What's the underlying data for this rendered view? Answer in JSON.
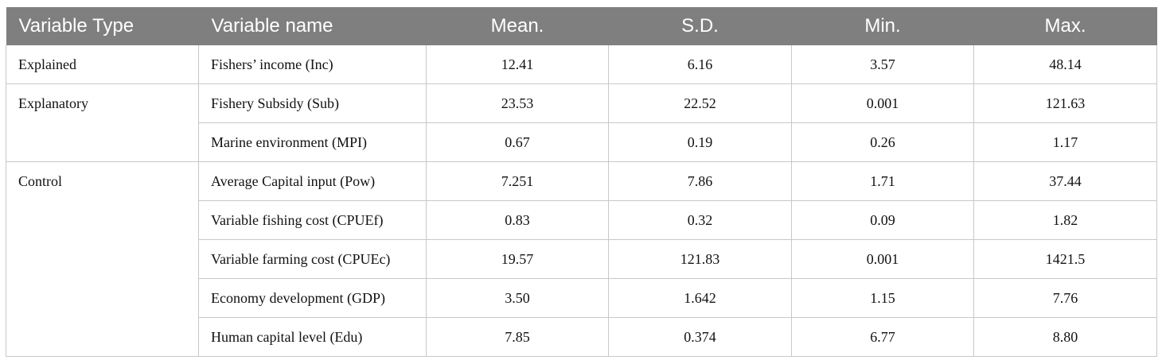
{
  "table": {
    "headers": [
      "Variable Type",
      "Variable name",
      "Mean.",
      "S.D.",
      "Min.",
      "Max."
    ],
    "rows": [
      {
        "type": "Explained",
        "name": "Fishers’ income (Inc)",
        "mean": "12.41",
        "sd": "6.16",
        "min": "3.57",
        "max": "48.14"
      },
      {
        "type": "Explanatory",
        "name": "Fishery Subsidy (Sub)",
        "mean": "23.53",
        "sd": "22.52",
        "min": "0.001",
        "max": "121.63"
      },
      {
        "type": "",
        "name": "Marine environment (MPI)",
        "mean": "0.67",
        "sd": "0.19",
        "min": "0.26",
        "max": "1.17"
      },
      {
        "type": "Control",
        "name": "Average Capital input (Pow)",
        "mean": "7.251",
        "sd": "7.86",
        "min": "1.71",
        "max": "37.44"
      },
      {
        "type": "",
        "name": "Variable fishing cost (CPUEf)",
        "mean": "0.83",
        "sd": "0.32",
        "min": "0.09",
        "max": "1.82"
      },
      {
        "type": "",
        "name": "Variable farming cost (CPUEc)",
        "mean": "19.57",
        "sd": "121.83",
        "min": "0.001",
        "max": "1421.5"
      },
      {
        "type": "",
        "name": "Economy development (GDP)",
        "mean": "3.50",
        "sd": "1.642",
        "min": "1.15",
        "max": "7.76"
      },
      {
        "type": "",
        "name": "Human capital level (Edu)",
        "mean": "7.85",
        "sd": "0.374",
        "min": "6.77",
        "max": "8.80"
      }
    ]
  }
}
